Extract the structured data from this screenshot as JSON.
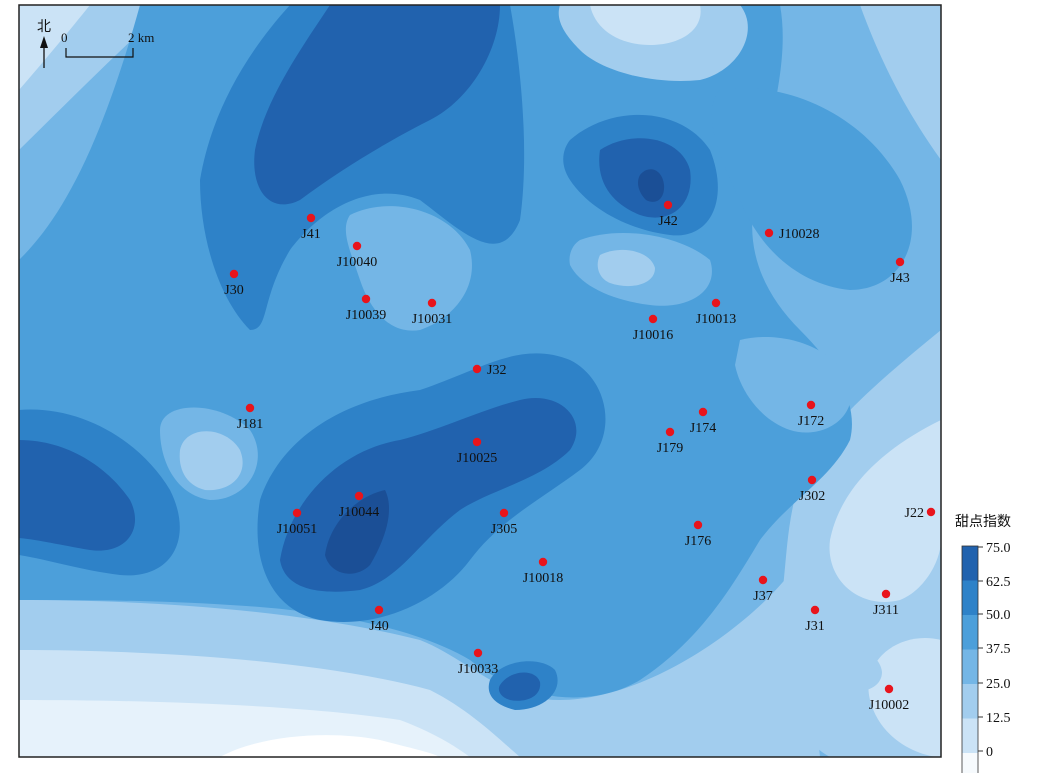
{
  "north": {
    "label": "北"
  },
  "scale_bar": {
    "start_label": "0",
    "end_label": "2 km"
  },
  "legend": {
    "title": "甜点指数",
    "ticks": [
      "75.0",
      "62.5",
      "50.0",
      "37.5",
      "25.0",
      "12.5",
      "0"
    ],
    "colors": [
      "#2162ae",
      "#2e82c8",
      "#4c9fda",
      "#74b6e6",
      "#a2cdee",
      "#cbe3f6",
      "#f6fafd"
    ]
  },
  "wells": [
    {
      "name": "J41"
    },
    {
      "name": "J10040"
    },
    {
      "name": "J30"
    },
    {
      "name": "J10039"
    },
    {
      "name": "J10031"
    },
    {
      "name": "J42"
    },
    {
      "name": "J10028"
    },
    {
      "name": "J43"
    },
    {
      "name": "J10016"
    },
    {
      "name": "J10013"
    },
    {
      "name": "J32"
    },
    {
      "name": "J181"
    },
    {
      "name": "J174"
    },
    {
      "name": "J172"
    },
    {
      "name": "J179"
    },
    {
      "name": "J10025"
    },
    {
      "name": "J302"
    },
    {
      "name": "J22"
    },
    {
      "name": "J10051"
    },
    {
      "name": "J10044"
    },
    {
      "name": "J305"
    },
    {
      "name": "J176"
    },
    {
      "name": "J10018"
    },
    {
      "name": "J37"
    },
    {
      "name": "J311"
    },
    {
      "name": "J40"
    },
    {
      "name": "J31"
    },
    {
      "name": "J10033"
    },
    {
      "name": "J10002"
    }
  ]
}
